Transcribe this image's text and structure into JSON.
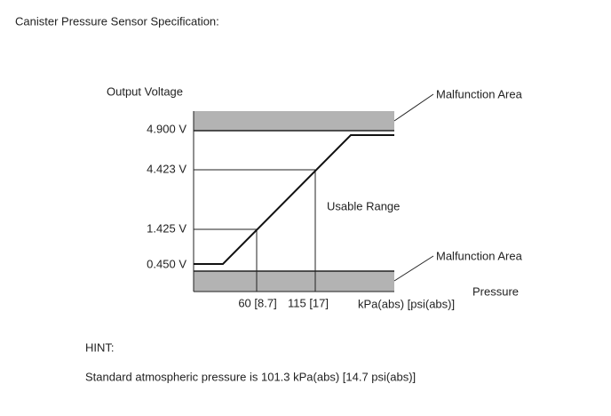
{
  "header": {
    "title": "Canister Pressure Sensor Specification:"
  },
  "diagram": {
    "y_axis_label": "Output Voltage",
    "voltage_labels": [
      "4.900 V",
      "4.423 V",
      "1.425 V",
      "0.450 V"
    ],
    "malfunction_labels": [
      "Malfunction Area",
      "Malfunction Area"
    ],
    "usable_range_label": "Usable Range",
    "x_axis_label": "Pressure",
    "pressure_labels": [
      "60 [8.7]",
      "115 [17]"
    ],
    "unit_label": "kPa(abs) [psi(abs)]"
  },
  "hint": {
    "title": "HINT:",
    "text": "Standard atmospheric pressure is 101.3 kPa(abs) [14.7 psi(abs)]"
  }
}
